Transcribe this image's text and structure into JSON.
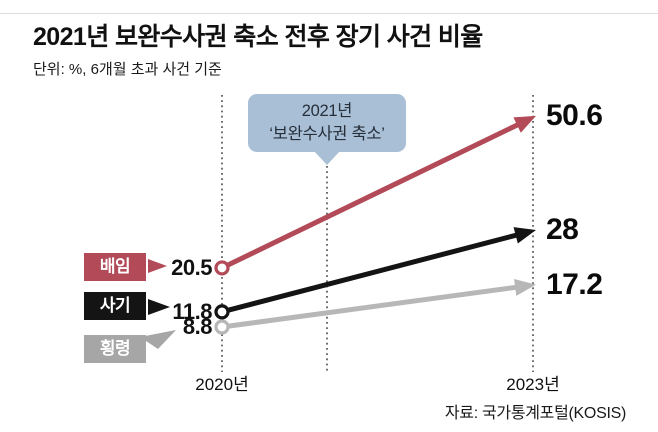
{
  "header": {
    "title": "2021년 보완수사권 축소 전후 장기 사건 비율",
    "unit_note": "단위: %, 6개월 초과 사건 기준"
  },
  "callout": {
    "line1": "2021년",
    "line2": "‘보완수사권 축소’",
    "bg_color": "#a9bfd6"
  },
  "chart_data": {
    "type": "line",
    "variant": "slope",
    "title": "2021년 보완수사권 축소 전후 장기 사건 비율",
    "unit": "%, 6개월 초과 사건 기준",
    "x": [
      "2020년",
      "2023년"
    ],
    "series": [
      {
        "name": "배임",
        "values": [
          20.5,
          50.6
        ],
        "color": "#b24a58",
        "box_color": "#b24a58"
      },
      {
        "name": "사기",
        "values": [
          11.8,
          28
        ],
        "color": "#141414",
        "box_color": "#141414"
      },
      {
        "name": "횡령",
        "values": [
          8.8,
          17.2
        ],
        "color": "#b7b7b7",
        "box_color": "#a6a6a6"
      }
    ],
    "annotation": "2021년 ‘보완수사권 축소’",
    "legend_position": "left",
    "grid": false,
    "source": "자료: 국가통계포털(KOSIS)"
  }
}
